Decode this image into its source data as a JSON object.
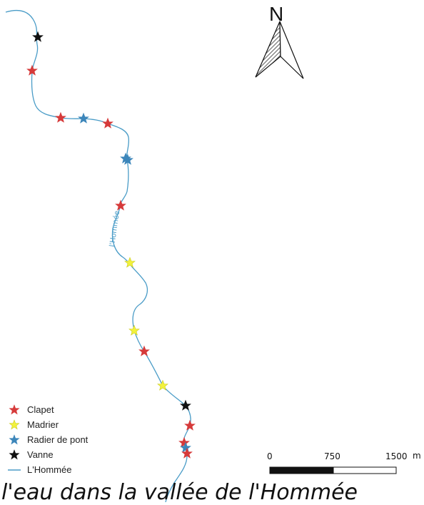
{
  "north_arrow": {
    "letter": "N"
  },
  "river": {
    "label": "l'Hommée",
    "color": "#4a9cc7"
  },
  "legend": [
    {
      "label": "Clapet",
      "color": "#d63a3a",
      "icon": "star-icon"
    },
    {
      "label": "Madrier",
      "color": "#f2f23c",
      "icon": "star-icon"
    },
    {
      "label": "Radier de pont",
      "color": "#3c86ba",
      "icon": "star-icon"
    },
    {
      "label": "Vanne",
      "color": "#111111",
      "icon": "star-icon"
    },
    {
      "label": "L'Hommée",
      "color": "#4a9cc7",
      "icon": "line-icon"
    }
  ],
  "scale_bar": {
    "labels": [
      "0",
      "750",
      "1500"
    ],
    "unit": "m"
  },
  "caption": "l'eau dans la vallée de l'Hommée"
}
